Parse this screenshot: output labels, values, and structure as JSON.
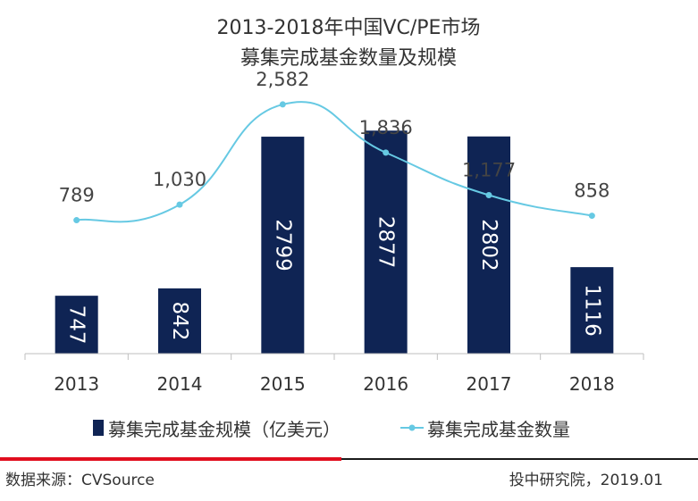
{
  "chart_data": {
    "type": "bar",
    "title_lines": [
      "2013-2018年中国VC/PE市场",
      "募集完成基金数量及规模"
    ],
    "categories": [
      "2013",
      "2014",
      "2015",
      "2016",
      "2017",
      "2018"
    ],
    "series": [
      {
        "name": "募集完成基金规模（亿美元）",
        "type": "bar",
        "axis": "left",
        "values": [
          747,
          842,
          2799,
          2877,
          2802,
          1116
        ],
        "value_labels": [
          "747",
          "842",
          "2799",
          "2877",
          "2802",
          "1116"
        ]
      },
      {
        "name": "募集完成基金数量",
        "type": "line",
        "smooth": true,
        "axis": "right",
        "values": [
          789,
          1030,
          2582,
          1836,
          1177,
          858
        ],
        "value_labels": [
          "789",
          "1,030",
          "2,582",
          "1,836",
          "1,177",
          "858"
        ]
      }
    ],
    "legend_position": "bottom",
    "grid": false
  },
  "colors": {
    "bar": "#0f2454",
    "line": "#66c9e3",
    "axis": "#bfbfbf",
    "footer_line_red": "#e10e1e",
    "footer_line_dark": "#1a1a1a"
  },
  "footer": {
    "source": "数据来源：CVSource",
    "credit": "投中研究院，2019.01"
  }
}
